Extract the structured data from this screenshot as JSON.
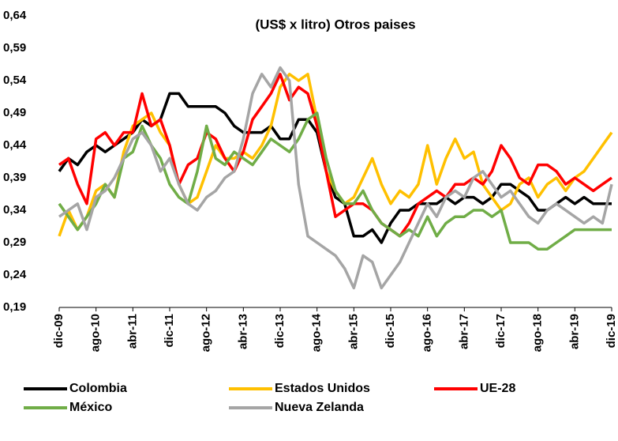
{
  "chart_data": {
    "type": "line",
    "title": "(US$ x litro) Otros paises",
    "categories": [
      "dic-09",
      null,
      null,
      null,
      "ago-10",
      null,
      null,
      null,
      "abr-11",
      null,
      null,
      null,
      "dic-11",
      null,
      null,
      null,
      "ago-12",
      null,
      null,
      null,
      "abr-13",
      null,
      null,
      null,
      "dic-13",
      null,
      null,
      null,
      "ago-14",
      null,
      null,
      null,
      "abr-15",
      null,
      null,
      null,
      "dic-15",
      null,
      null,
      null,
      "ago-16",
      null,
      null,
      null,
      "abr-17",
      null,
      null,
      null,
      "dic-17",
      null,
      null,
      null,
      "ago-18",
      null,
      null,
      null,
      "abr-19",
      null,
      null,
      null,
      "dic-19"
    ],
    "series": [
      {
        "name": "Colombia",
        "color": "#000000",
        "values": [
          0.4,
          0.42,
          0.41,
          0.43,
          0.44,
          0.43,
          0.44,
          0.45,
          0.46,
          0.48,
          0.47,
          0.48,
          0.52,
          0.52,
          0.5,
          0.5,
          0.5,
          0.5,
          0.49,
          0.47,
          0.46,
          0.46,
          0.46,
          0.47,
          0.45,
          0.45,
          0.48,
          0.48,
          0.46,
          0.4,
          0.36,
          0.35,
          0.3,
          0.3,
          0.31,
          0.29,
          0.32,
          0.34,
          0.34,
          0.35,
          0.35,
          0.35,
          0.36,
          0.35,
          0.36,
          0.36,
          0.35,
          0.36,
          0.38,
          0.38,
          0.37,
          0.36,
          0.34,
          0.34,
          0.35,
          0.36,
          0.35,
          0.36,
          0.35,
          0.35,
          0.35
        ]
      },
      {
        "name": "Estados Unidos",
        "color": "#ffc000",
        "values": [
          0.3,
          0.34,
          0.31,
          0.33,
          0.37,
          0.38,
          0.36,
          0.43,
          0.47,
          0.48,
          0.49,
          0.46,
          0.44,
          0.38,
          0.35,
          0.36,
          0.4,
          0.44,
          0.42,
          0.42,
          0.43,
          0.42,
          0.44,
          0.47,
          0.53,
          0.55,
          0.54,
          0.55,
          0.48,
          0.4,
          0.37,
          0.35,
          0.36,
          0.39,
          0.42,
          0.38,
          0.35,
          0.37,
          0.36,
          0.38,
          0.44,
          0.38,
          0.42,
          0.45,
          0.42,
          0.43,
          0.38,
          0.36,
          0.34,
          0.35,
          0.38,
          0.39,
          0.36,
          0.38,
          0.39,
          0.37,
          0.39,
          0.4,
          0.42,
          0.44,
          0.46
        ]
      },
      {
        "name": "UE-28",
        "color": "#ff0000",
        "values": [
          0.41,
          0.42,
          0.38,
          0.35,
          0.45,
          0.46,
          0.44,
          0.46,
          0.46,
          0.52,
          0.47,
          0.48,
          0.44,
          0.38,
          0.41,
          0.42,
          0.46,
          0.45,
          0.42,
          0.4,
          0.43,
          0.48,
          0.5,
          0.52,
          0.55,
          0.51,
          0.53,
          0.52,
          0.47,
          0.4,
          0.33,
          0.34,
          0.35,
          0.35,
          0.34,
          0.32,
          0.31,
          0.3,
          0.32,
          0.35,
          0.36,
          0.37,
          0.36,
          0.38,
          0.38,
          0.39,
          0.38,
          0.4,
          0.44,
          0.42,
          0.39,
          0.38,
          0.41,
          0.41,
          0.4,
          0.38,
          0.39,
          0.38,
          0.37,
          0.38,
          0.39
        ]
      },
      {
        "name": "México",
        "color": "#70ad47",
        "values": [
          0.35,
          0.33,
          0.31,
          0.33,
          0.35,
          0.38,
          0.36,
          0.42,
          0.43,
          0.47,
          0.44,
          0.42,
          0.38,
          0.36,
          0.35,
          0.4,
          0.47,
          0.42,
          0.41,
          0.43,
          0.42,
          0.41,
          0.43,
          0.45,
          0.44,
          0.43,
          0.45,
          0.48,
          0.49,
          0.42,
          0.37,
          0.35,
          0.35,
          0.37,
          0.34,
          0.32,
          0.31,
          0.3,
          0.31,
          0.3,
          0.33,
          0.3,
          0.32,
          0.33,
          0.33,
          0.34,
          0.34,
          0.33,
          0.34,
          0.29,
          0.29,
          0.29,
          0.28,
          0.28,
          0.29,
          0.3,
          0.31,
          0.31,
          0.31,
          0.31,
          0.31
        ]
      },
      {
        "name": "Nueva Zelanda",
        "color": "#a5a5a5",
        "values": [
          0.33,
          0.34,
          0.35,
          0.31,
          0.36,
          0.37,
          0.39,
          0.42,
          0.45,
          0.46,
          0.44,
          0.4,
          0.42,
          0.38,
          0.35,
          0.34,
          0.36,
          0.37,
          0.39,
          0.4,
          0.45,
          0.52,
          0.55,
          0.53,
          0.56,
          0.54,
          0.38,
          0.3,
          0.29,
          0.28,
          0.27,
          0.25,
          0.22,
          0.27,
          0.26,
          0.22,
          0.24,
          0.26,
          0.29,
          0.32,
          0.35,
          0.33,
          0.36,
          0.37,
          0.36,
          0.39,
          0.4,
          0.38,
          0.36,
          0.37,
          0.35,
          0.33,
          0.32,
          0.34,
          0.35,
          0.34,
          0.33,
          0.32,
          0.33,
          0.32,
          0.38
        ]
      }
    ],
    "ylim": [
      0.19,
      0.64
    ],
    "yticks": [
      {
        "value": 0.19,
        "label": "0,19"
      },
      {
        "value": 0.24,
        "label": "0,24"
      },
      {
        "value": 0.29,
        "label": "0,29"
      },
      {
        "value": 0.34,
        "label": "0,34"
      },
      {
        "value": 0.39,
        "label": "0,39"
      },
      {
        "value": 0.44,
        "label": "0,44"
      },
      {
        "value": 0.49,
        "label": "0,49"
      },
      {
        "value": 0.54,
        "label": "0,54"
      },
      {
        "value": 0.59,
        "label": "0,59"
      },
      {
        "value": 0.64,
        "label": "0,64"
      }
    ],
    "grid": false,
    "legend": "bottom"
  }
}
